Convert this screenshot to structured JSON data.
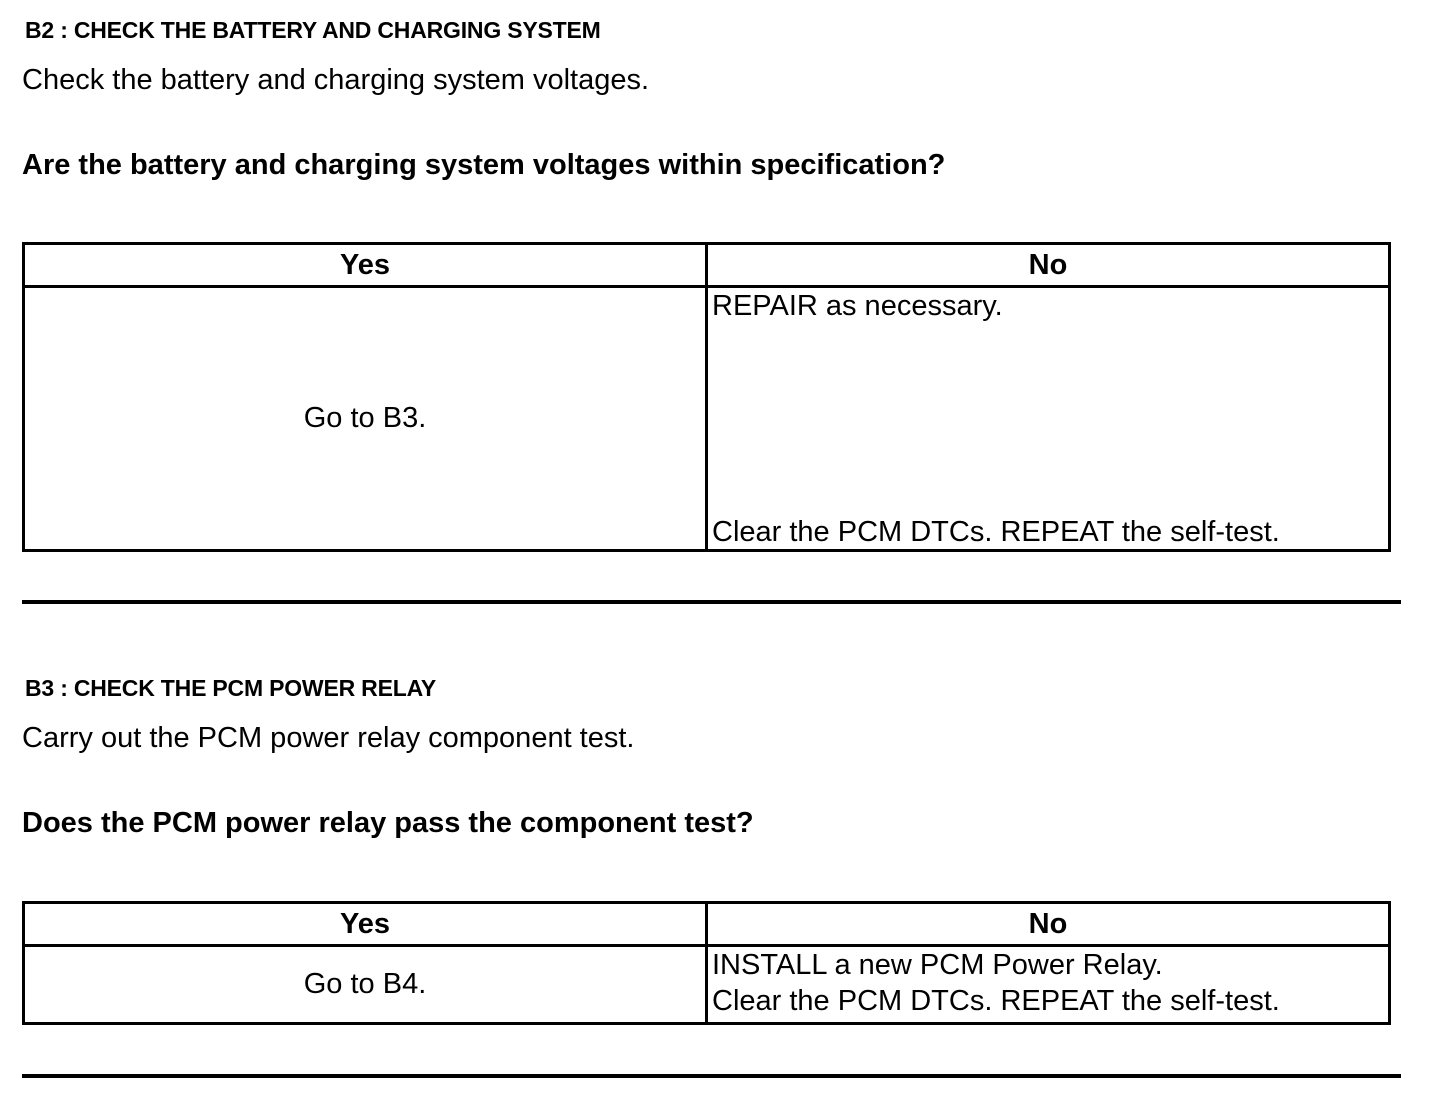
{
  "steps": [
    {
      "heading": "B2 : CHECK THE BATTERY AND CHARGING SYSTEM",
      "instruction": "Check the battery and charging system voltages.",
      "question": "Are the battery and charging system voltages within specification?",
      "table": {
        "yes_header": "Yes",
        "no_header": "No",
        "yes_action": "Go to B3.",
        "no_action_1": "REPAIR as necessary.",
        "no_action_2": "Clear the PCM DTCs. REPEAT the self-test."
      }
    },
    {
      "heading": "B3 : CHECK THE PCM POWER RELAY",
      "instruction": "Carry out the PCM power relay component test.",
      "question": "Does the PCM power relay pass the component test?",
      "table": {
        "yes_header": "Yes",
        "no_header": "No",
        "yes_action": "Go to B4.",
        "no_action_1": "INSTALL a new PCM Power Relay.",
        "no_action_2": "Clear the PCM DTCs. REPEAT the self-test."
      }
    }
  ]
}
